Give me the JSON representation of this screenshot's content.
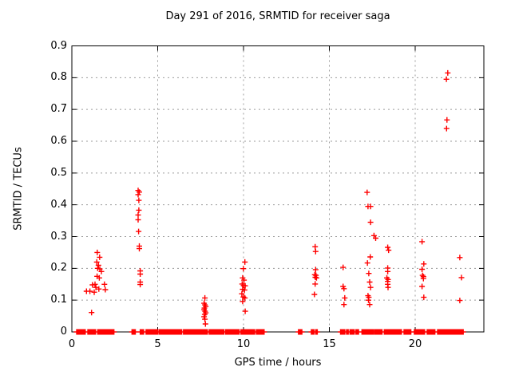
{
  "chart_data": {
    "type": "scatter",
    "title": "Day 291 of 2016, SRMTID for receiver saga",
    "xlabel": "GPS time / hours",
    "ylabel": "SRMTID / TECUs",
    "xlim": [
      0,
      24
    ],
    "ylim": [
      0,
      0.9
    ],
    "grid": true,
    "legend": "none",
    "xticks": [
      {
        "v": 0,
        "label": "0"
      },
      {
        "v": 5,
        "label": "5"
      },
      {
        "v": 10,
        "label": "10"
      },
      {
        "v": 15,
        "label": "15"
      },
      {
        "v": 20,
        "label": "20"
      }
    ],
    "yticks": [
      {
        "v": 0.0,
        "label": "0"
      },
      {
        "v": 0.1,
        "label": "0.1"
      },
      {
        "v": 0.2,
        "label": "0.2"
      },
      {
        "v": 0.3,
        "label": "0.3"
      },
      {
        "v": 0.4,
        "label": "0.4"
      },
      {
        "v": 0.5,
        "label": "0.5"
      },
      {
        "v": 0.6,
        "label": "0.6"
      },
      {
        "v": 0.7,
        "label": "0.7"
      },
      {
        "v": 0.8,
        "label": "0.8"
      },
      {
        "v": 0.9,
        "label": "0.9"
      }
    ],
    "marker": {
      "shape": "plus",
      "color": "#ff0000",
      "size": 7
    },
    "colors": {
      "border": "#000000",
      "grid": "#9b9b9b",
      "text": "#000000"
    },
    "series": [
      {
        "name": "SRMTID",
        "points": [
          [
            0.85,
            0.128
          ],
          [
            1.05,
            0.128
          ],
          [
            1.15,
            0.061
          ],
          [
            1.2,
            0.148
          ],
          [
            1.3,
            0.125
          ],
          [
            1.35,
            0.15
          ],
          [
            1.4,
            0.14
          ],
          [
            1.45,
            0.22
          ],
          [
            1.47,
            0.175
          ],
          [
            1.48,
            0.25
          ],
          [
            1.5,
            0.2
          ],
          [
            1.55,
            0.21
          ],
          [
            1.57,
            0.135
          ],
          [
            1.6,
            0.17
          ],
          [
            1.62,
            0.235
          ],
          [
            1.63,
            0.198
          ],
          [
            1.72,
            0.19
          ],
          [
            1.9,
            0.15
          ],
          [
            1.95,
            0.133
          ],
          [
            3.86,
            0.445
          ],
          [
            3.93,
            0.44
          ],
          [
            3.86,
            0.432
          ],
          [
            3.9,
            0.414
          ],
          [
            3.9,
            0.383
          ],
          [
            3.86,
            0.368
          ],
          [
            3.86,
            0.353
          ],
          [
            3.89,
            0.316
          ],
          [
            3.93,
            0.27
          ],
          [
            3.93,
            0.262
          ],
          [
            3.98,
            0.192
          ],
          [
            3.98,
            0.182
          ],
          [
            3.98,
            0.157
          ],
          [
            3.98,
            0.149
          ],
          [
            7.75,
            0.107
          ],
          [
            7.7,
            0.09
          ],
          [
            7.75,
            0.085
          ],
          [
            7.8,
            0.08
          ],
          [
            7.72,
            0.075
          ],
          [
            7.7,
            0.07
          ],
          [
            7.76,
            0.065
          ],
          [
            7.8,
            0.06
          ],
          [
            7.74,
            0.055
          ],
          [
            7.7,
            0.048
          ],
          [
            7.75,
            0.04
          ],
          [
            7.78,
            0.025
          ],
          [
            10.08,
            0.22
          ],
          [
            9.99,
            0.199
          ],
          [
            9.95,
            0.17
          ],
          [
            10.03,
            0.163
          ],
          [
            9.92,
            0.151
          ],
          [
            10.0,
            0.146
          ],
          [
            10.1,
            0.145
          ],
          [
            9.95,
            0.134
          ],
          [
            10.06,
            0.132
          ],
          [
            9.9,
            0.12
          ],
          [
            9.99,
            0.11
          ],
          [
            10.08,
            0.107
          ],
          [
            9.95,
            0.096
          ],
          [
            10.1,
            0.065
          ],
          [
            14.17,
            0.268
          ],
          [
            14.2,
            0.253
          ],
          [
            14.2,
            0.196
          ],
          [
            14.15,
            0.18
          ],
          [
            14.22,
            0.178
          ],
          [
            14.18,
            0.172
          ],
          [
            14.25,
            0.17
          ],
          [
            14.17,
            0.151
          ],
          [
            14.13,
            0.118
          ],
          [
            15.8,
            0.203
          ],
          [
            15.8,
            0.143
          ],
          [
            15.85,
            0.136
          ],
          [
            15.9,
            0.107
          ],
          [
            15.85,
            0.086
          ],
          [
            17.2,
            0.439
          ],
          [
            17.25,
            0.395
          ],
          [
            17.4,
            0.395
          ],
          [
            17.4,
            0.345
          ],
          [
            17.6,
            0.303
          ],
          [
            17.7,
            0.295
          ],
          [
            17.38,
            0.236
          ],
          [
            17.22,
            0.217
          ],
          [
            17.3,
            0.184
          ],
          [
            17.35,
            0.157
          ],
          [
            17.4,
            0.14
          ],
          [
            17.25,
            0.114
          ],
          [
            17.3,
            0.109
          ],
          [
            17.28,
            0.1
          ],
          [
            17.35,
            0.086
          ],
          [
            18.4,
            0.266
          ],
          [
            18.45,
            0.257
          ],
          [
            18.4,
            0.201
          ],
          [
            18.4,
            0.19
          ],
          [
            18.35,
            0.17
          ],
          [
            18.42,
            0.165
          ],
          [
            18.4,
            0.159
          ],
          [
            18.4,
            0.15
          ],
          [
            18.42,
            0.14
          ],
          [
            20.4,
            0.284
          ],
          [
            20.5,
            0.214
          ],
          [
            20.4,
            0.197
          ],
          [
            20.43,
            0.178
          ],
          [
            20.48,
            0.174
          ],
          [
            20.48,
            0.168
          ],
          [
            20.4,
            0.143
          ],
          [
            20.5,
            0.109
          ],
          [
            21.9,
            0.815
          ],
          [
            21.82,
            0.795
          ],
          [
            21.85,
            0.667
          ],
          [
            21.83,
            0.64
          ],
          [
            22.6,
            0.234
          ],
          [
            22.7,
            0.171
          ],
          [
            22.6,
            0.099
          ]
        ],
        "zero_runs": [
          [
            0.28,
            0.79
          ],
          [
            0.93,
            1.4
          ],
          [
            1.5,
            2.47
          ],
          [
            3.5,
            3.72
          ],
          [
            3.98,
            4.2
          ],
          [
            4.32,
            5.05
          ],
          [
            5.1,
            5.5
          ],
          [
            5.55,
            6.4
          ],
          [
            6.5,
            7.05
          ],
          [
            7.1,
            7.5
          ],
          [
            7.55,
            7.9
          ],
          [
            8.0,
            8.85
          ],
          [
            8.95,
            9.75
          ],
          [
            9.85,
            10.65
          ],
          [
            10.75,
            10.95
          ],
          [
            11.0,
            11.2
          ],
          [
            13.2,
            13.42
          ],
          [
            13.95,
            14.1
          ],
          [
            14.2,
            14.33
          ],
          [
            15.65,
            15.92
          ],
          [
            16.0,
            16.12
          ],
          [
            16.2,
            16.45
          ],
          [
            16.55,
            16.7
          ],
          [
            16.9,
            17.55
          ],
          [
            17.62,
            18.1
          ],
          [
            18.2,
            19.2
          ],
          [
            19.35,
            19.75
          ],
          [
            19.95,
            20.55
          ],
          [
            20.7,
            21.15
          ],
          [
            21.3,
            22.8
          ]
        ]
      }
    ]
  }
}
